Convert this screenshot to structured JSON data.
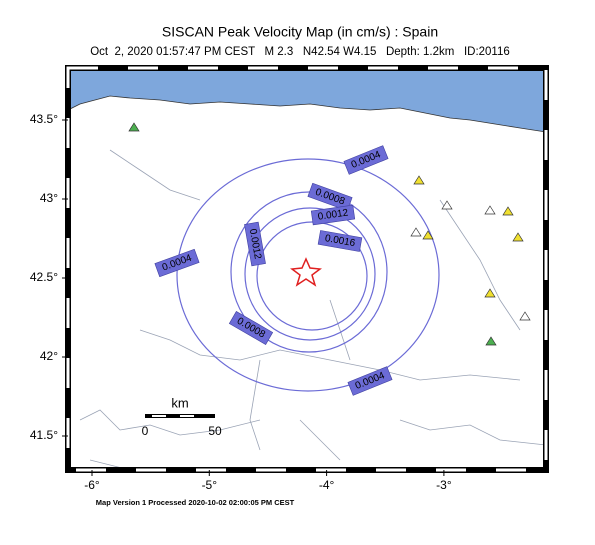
{
  "map": {
    "title": "SISCAN Peak Velocity Map (in cm/s) : Spain",
    "subtitle": "Oct  2, 2020 01:57:47 PM CEST   M 2.3   N42.54 W4.15   Depth: 1.2km   ID:20116",
    "footer": "Map Version 1 Processed 2020-10-02 02:00:05 PM CEST",
    "lon_ticks": [
      {
        "value": -6,
        "label": "-6°"
      },
      {
        "value": -5,
        "label": "-5°"
      },
      {
        "value": -4,
        "label": "-4°"
      },
      {
        "value": -3,
        "label": "-3°"
      }
    ],
    "lat_ticks": [
      {
        "value": 43.5,
        "label": "43.5°"
      },
      {
        "value": 43,
        "label": "43°"
      },
      {
        "value": 42.5,
        "label": "42.5°"
      },
      {
        "value": 42,
        "label": "42°"
      },
      {
        "value": 41.5,
        "label": "41.5°"
      }
    ],
    "scale_bar": {
      "unit": "km",
      "start": "0",
      "end": "50"
    },
    "contour_labels": [
      "0.0004",
      "0.0008",
      "0.0012",
      "0.0016",
      "0.0004",
      "0.0012",
      "0.0008",
      "0.0004"
    ]
  }
}
